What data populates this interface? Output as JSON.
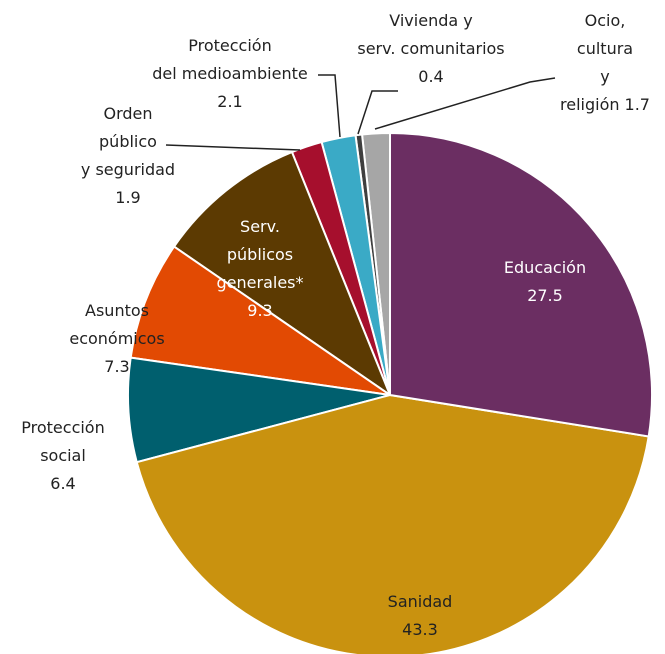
{
  "chart_data": {
    "type": "pie",
    "categories": [
      "Educación",
      "Sanidad",
      "Protección\nsocial",
      "Asuntos\neconómicos",
      "Serv.\npúblicos\ngenerales*",
      "Orden\npúblico\ny seguridad",
      "Protección\ndel medioambiente",
      "Vivienda y\nserv. comunitarios",
      "Ocio,\ncultura\ny religión"
    ],
    "values": [
      27.5,
      43.3,
      6.4,
      7.3,
      9.3,
      1.9,
      2.1,
      0.4,
      1.7
    ],
    "colors": [
      "#6b2e62",
      "#c9920f",
      "#005f6e",
      "#e24a03",
      "#5c3a02",
      "#a60f2d",
      "#3aaac6",
      "#3f3f3f",
      "#a6a6a6"
    ]
  }
}
